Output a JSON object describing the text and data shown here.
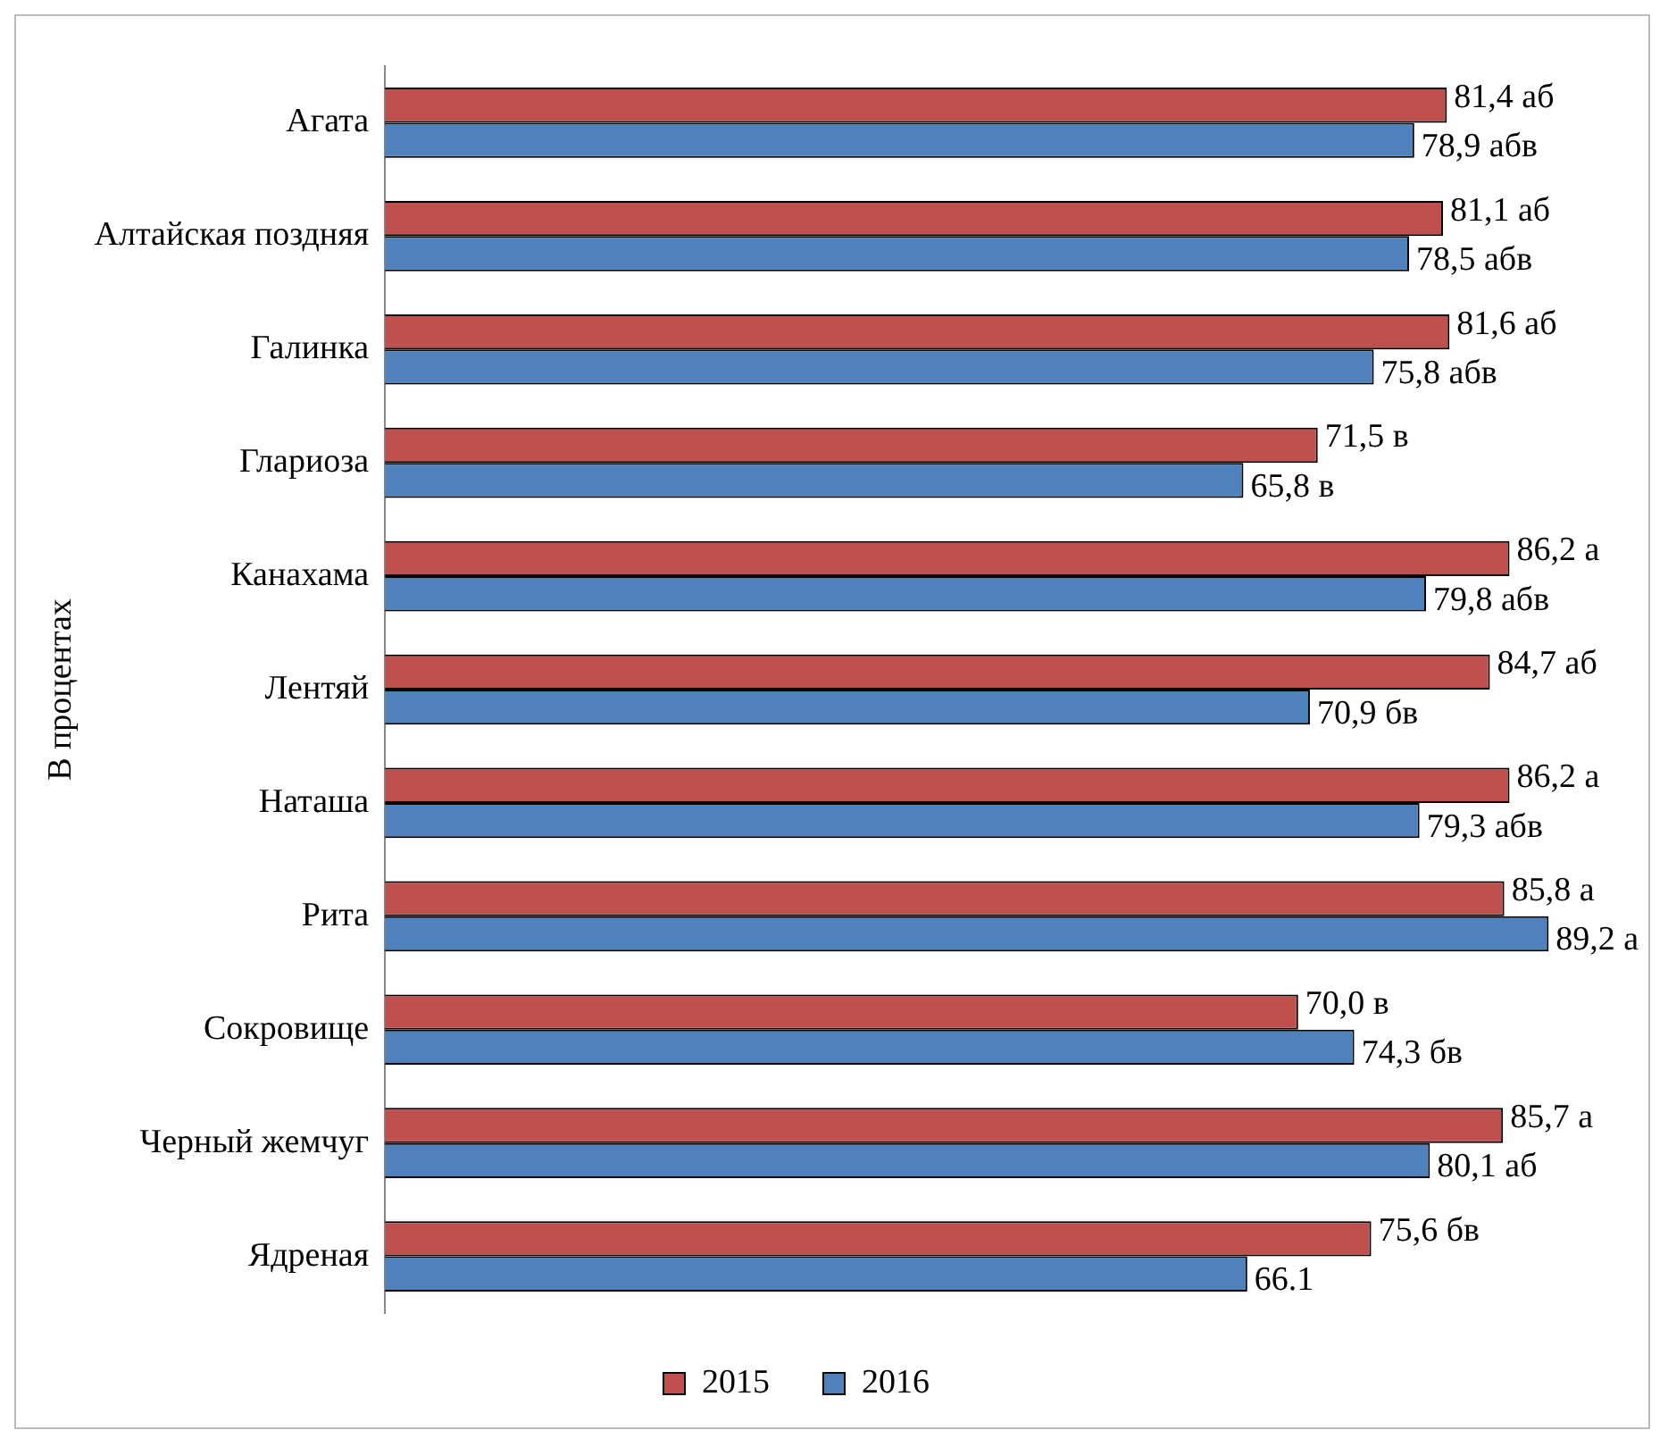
{
  "chart_data": {
    "type": "bar",
    "orientation": "horizontal",
    "ylabel": "В процентах",
    "categories": [
      "Агата",
      "Алтайская поздняя",
      "Галинка",
      "Глариоза",
      "Канахама",
      "Лентяй",
      "Наташа",
      "Рита",
      "Сокровище",
      "Черный жемчуг",
      "Ядреная"
    ],
    "series": [
      {
        "name": "2015",
        "color": "#c0504d",
        "values": [
          81.4,
          81.1,
          81.6,
          71.5,
          86.2,
          84.7,
          86.2,
          85.8,
          70.0,
          85.7,
          75.6
        ],
        "value_labels": [
          "81,4 аб",
          "81,1 аб",
          "81,6 аб",
          "71,5 в",
          "86,2 а",
          "84,7 аб",
          "86,2 а",
          "85,8 а",
          "70,0 в",
          "85,7 а",
          "75,6 бв"
        ]
      },
      {
        "name": "2016",
        "color": "#4f81bd",
        "values": [
          78.9,
          78.5,
          75.8,
          65.8,
          79.8,
          70.9,
          79.3,
          89.2,
          74.3,
          80.1,
          66.1
        ],
        "value_labels": [
          "78,9 абв",
          "78,5 абв",
          "75,8 абв",
          "65,8 в",
          "79,8 абв",
          "70,9 бв",
          "79,3 абв",
          "89,2 а",
          "74,3 бв",
          "80,1 аб",
          "66.1"
        ]
      }
    ],
    "tick_labels": "y",
    "grid": false,
    "legend": "bottom"
  }
}
